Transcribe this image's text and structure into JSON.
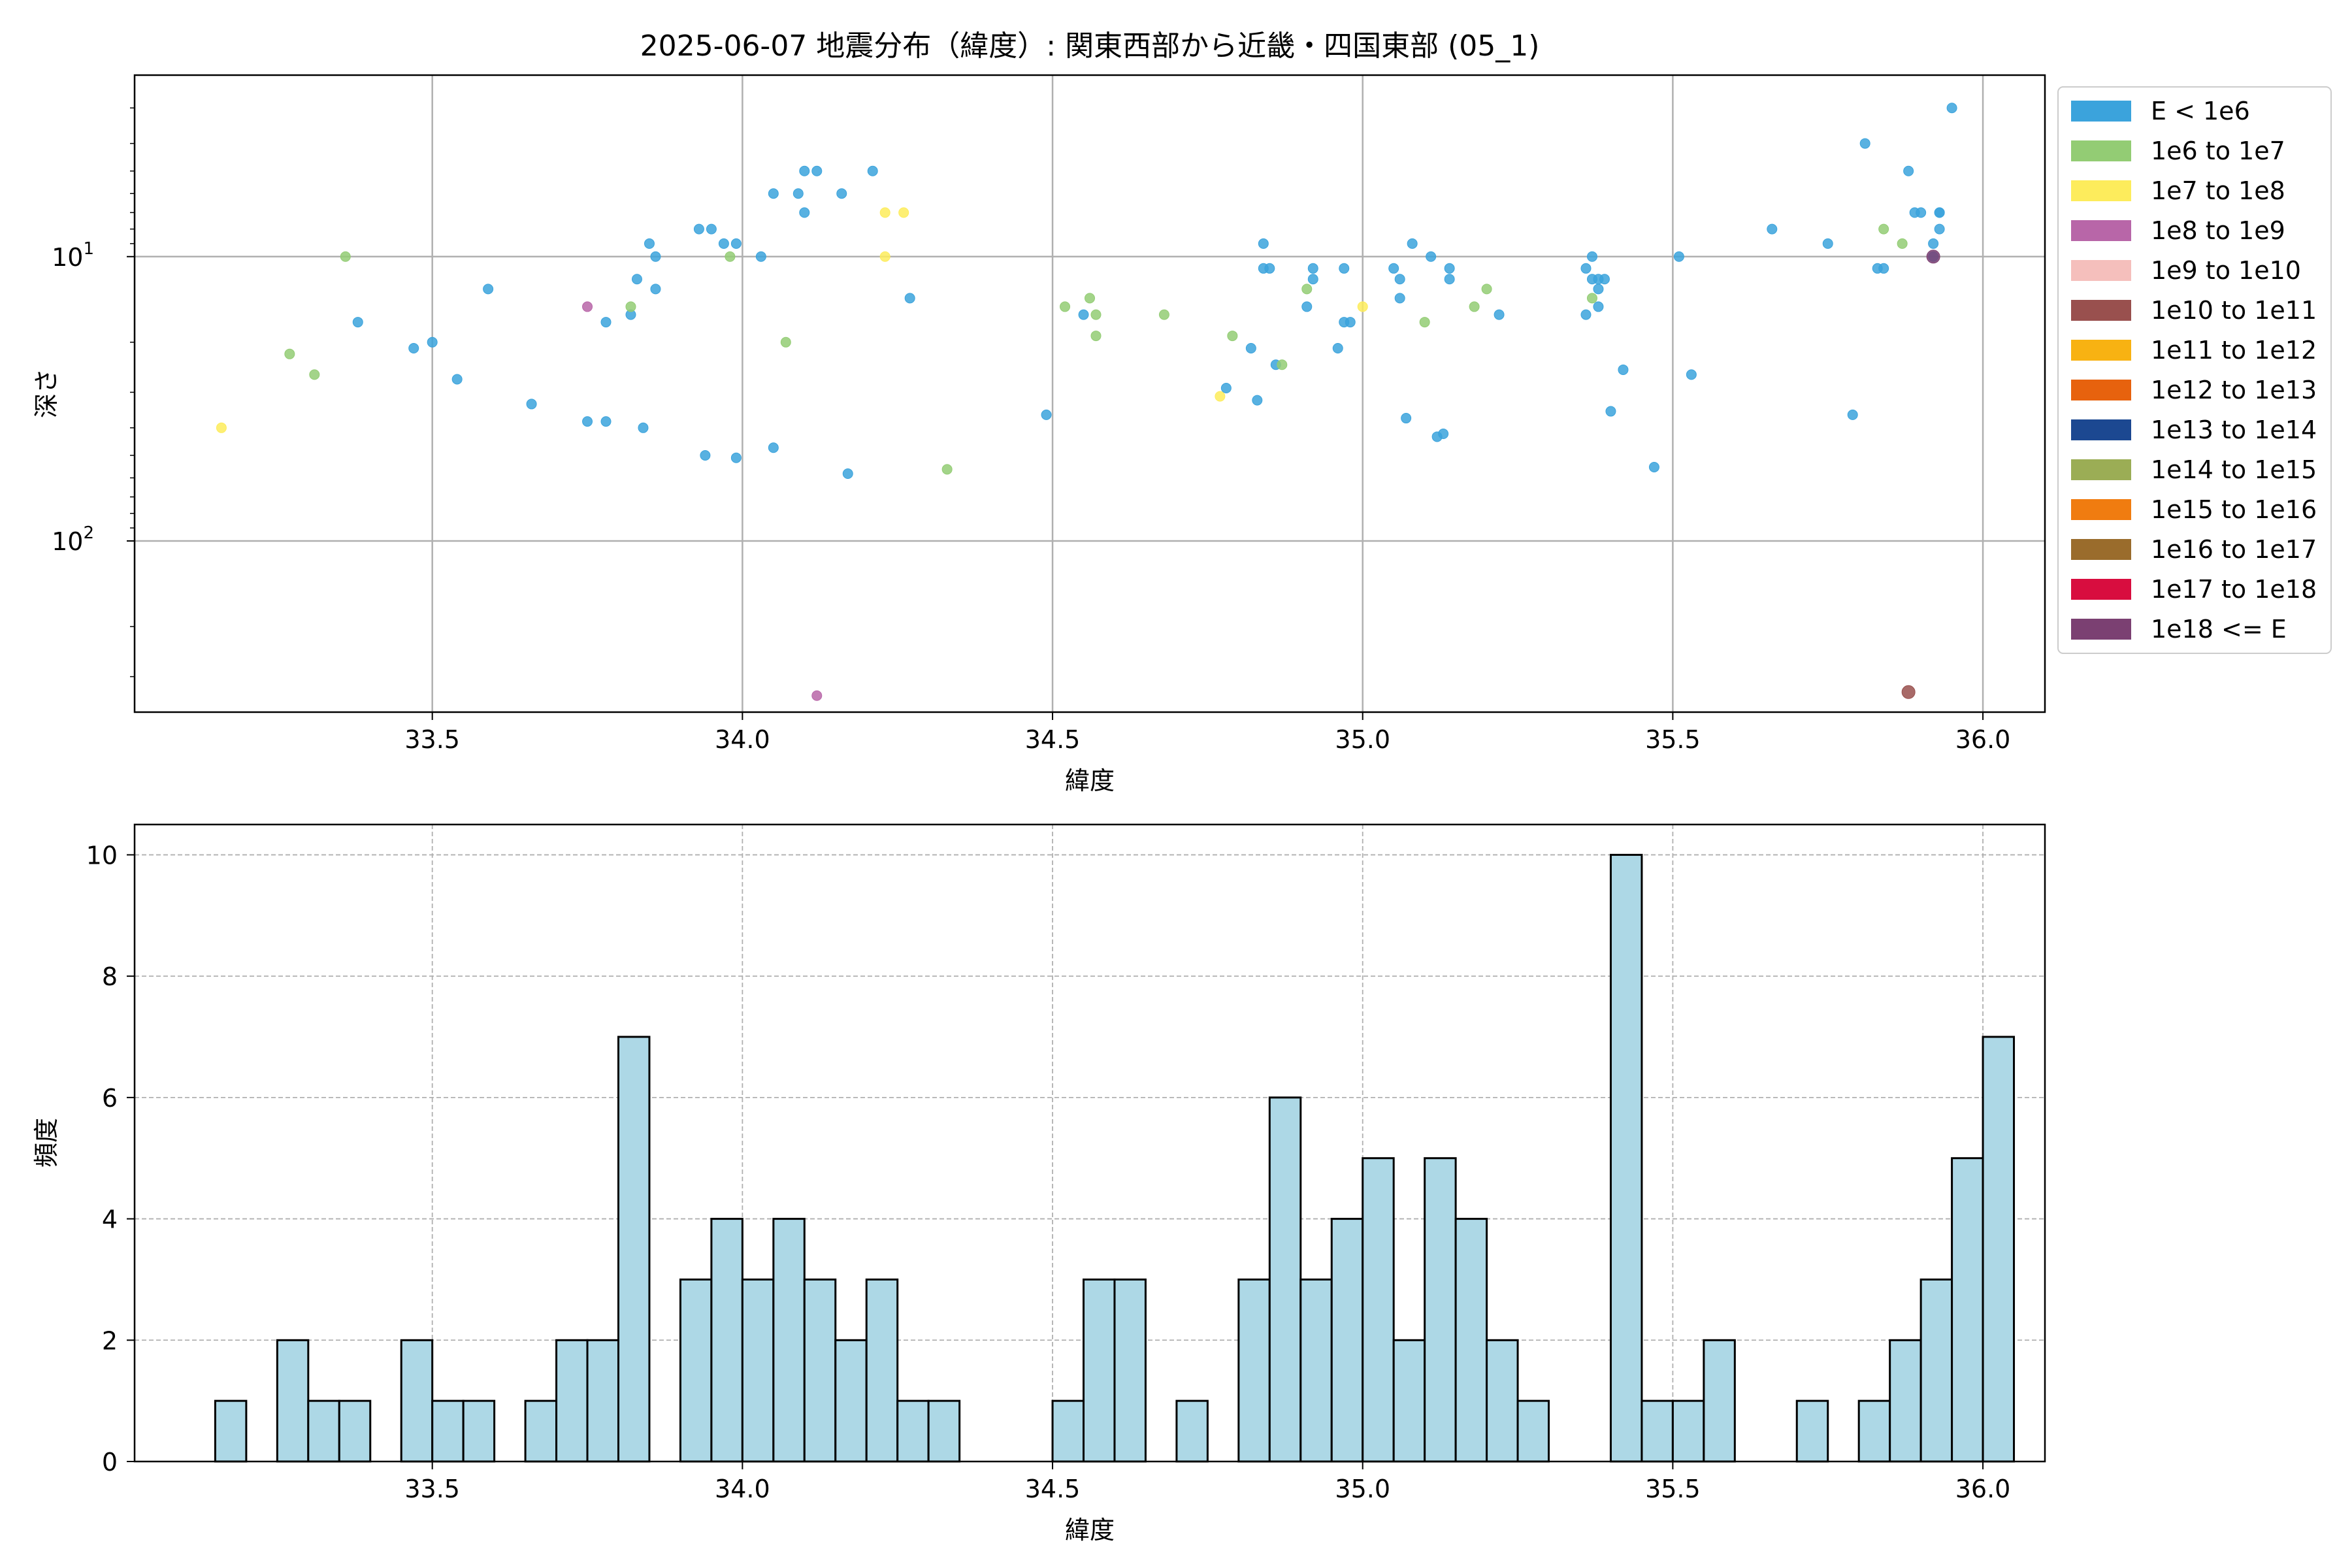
{
  "figure": {
    "top_title": "2025-06-07 地震分布（緯度）: 関東西部から近畿・四国東部 (05_1)"
  },
  "colors": {
    "grid": "#b0b0b0",
    "hist_fill": "#add8e6",
    "hist_edge": "#000000"
  },
  "chart_data": [
    {
      "type": "scatter",
      "title": "2025-06-07 地震分布（緯度）: 関東西部から近畿・四国東部 (05_1)",
      "xlabel": "緯度",
      "ylabel": "深さ",
      "xlim": [
        33.02,
        36.1
      ],
      "ylim": [
        400,
        2.3
      ],
      "y_scale": "log",
      "y_inverted": true,
      "x_ticks": [
        33.5,
        34.0,
        34.5,
        35.0,
        35.5,
        36.0
      ],
      "x_tick_labels": [
        "33.5",
        "34.0",
        "34.5",
        "35.0",
        "35.5",
        "36.0"
      ],
      "y_ticks": [
        10,
        100
      ],
      "y_tick_labels": [
        [
          "10",
          "1"
        ],
        [
          "10",
          "2"
        ]
      ],
      "grid": true,
      "legend_position": "outside-right",
      "legend": [
        {
          "label": "E < 1e6",
          "color": "#3ba3dc"
        },
        {
          "label": "1e6 to 1e7",
          "color": "#93cc74"
        },
        {
          "label": "1e7 to 1e8",
          "color": "#fdec5c"
        },
        {
          "label": "1e8 to 1e9",
          "color": "#b866a8"
        },
        {
          "label": "1e9 to 1e10",
          "color": "#f5bfbc"
        },
        {
          "label": "1e10 to 1e11",
          "color": "#99504e"
        },
        {
          "label": "1e11 to 1e12",
          "color": "#f8b212"
        },
        {
          "label": "1e12 to 1e13",
          "color": "#e7620e"
        },
        {
          "label": "1e13 to 1e14",
          "color": "#1c4891"
        },
        {
          "label": "1e14 to 1e15",
          "color": "#9bad55"
        },
        {
          "label": "1e15 to 1e16",
          "color": "#f07c10"
        },
        {
          "label": "1e16 to 1e17",
          "color": "#9a6c2c"
        },
        {
          "label": "1e17 to 1e18",
          "color": "#d80d3f"
        },
        {
          "label": "1e18 <= E",
          "color": "#7b4072"
        }
      ],
      "points": [
        [
          33.16,
          40,
          2
        ],
        [
          33.27,
          22,
          1
        ],
        [
          33.31,
          26,
          1
        ],
        [
          33.36,
          10,
          1
        ],
        [
          33.38,
          17,
          0
        ],
        [
          33.47,
          21,
          0
        ],
        [
          33.5,
          20,
          0
        ],
        [
          33.54,
          27,
          0
        ],
        [
          33.59,
          13,
          0
        ],
        [
          33.66,
          33,
          0
        ],
        [
          33.75,
          15,
          3
        ],
        [
          33.75,
          38,
          0
        ],
        [
          33.78,
          17,
          0
        ],
        [
          33.78,
          38,
          0
        ],
        [
          33.82,
          16,
          0
        ],
        [
          33.82,
          15,
          1
        ],
        [
          33.83,
          12,
          0
        ],
        [
          33.84,
          40,
          0
        ],
        [
          33.85,
          9,
          0
        ],
        [
          33.86,
          13,
          0
        ],
        [
          33.86,
          10,
          0
        ],
        [
          33.93,
          8,
          0
        ],
        [
          33.95,
          8,
          0
        ],
        [
          33.97,
          9,
          0
        ],
        [
          33.98,
          10,
          1
        ],
        [
          33.99,
          9,
          0
        ],
        [
          33.94,
          50,
          0
        ],
        [
          33.99,
          51,
          0
        ],
        [
          34.03,
          10,
          0
        ],
        [
          34.05,
          6,
          0
        ],
        [
          34.05,
          47,
          0
        ],
        [
          34.07,
          20,
          1
        ],
        [
          34.09,
          6,
          0
        ],
        [
          34.1,
          5,
          0
        ],
        [
          34.12,
          5,
          0
        ],
        [
          34.1,
          7,
          0
        ],
        [
          34.16,
          6,
          0
        ],
        [
          34.12,
          350,
          3
        ],
        [
          34.17,
          58,
          0
        ],
        [
          34.21,
          5,
          0
        ],
        [
          34.23,
          7,
          2
        ],
        [
          34.26,
          7,
          2
        ],
        [
          34.23,
          10,
          2
        ],
        [
          34.27,
          14,
          0
        ],
        [
          34.33,
          56,
          1
        ],
        [
          34.49,
          36,
          0
        ],
        [
          34.52,
          15,
          1
        ],
        [
          34.55,
          16,
          0
        ],
        [
          34.56,
          14,
          1
        ],
        [
          34.57,
          16,
          1
        ],
        [
          34.57,
          19,
          1
        ],
        [
          34.68,
          16,
          1
        ],
        [
          34.77,
          31,
          2
        ],
        [
          34.78,
          29,
          0
        ],
        [
          34.79,
          19,
          1
        ],
        [
          34.82,
          21,
          0
        ],
        [
          34.83,
          32,
          0
        ],
        [
          34.84,
          11,
          0
        ],
        [
          34.84,
          9,
          0
        ],
        [
          34.85,
          11,
          0
        ],
        [
          34.86,
          24,
          0
        ],
        [
          34.87,
          24,
          1
        ],
        [
          34.91,
          13,
          1
        ],
        [
          34.92,
          11,
          0
        ],
        [
          34.92,
          12,
          0
        ],
        [
          34.91,
          15,
          0
        ],
        [
          34.96,
          21,
          0
        ],
        [
          34.97,
          11,
          0
        ],
        [
          34.97,
          17,
          0
        ],
        [
          34.98,
          17,
          0
        ],
        [
          35.0,
          15,
          2
        ],
        [
          35.05,
          11,
          0
        ],
        [
          35.06,
          12,
          0
        ],
        [
          35.06,
          14,
          0
        ],
        [
          35.07,
          37,
          0
        ],
        [
          35.08,
          9,
          0
        ],
        [
          35.1,
          17,
          1
        ],
        [
          35.11,
          10,
          0
        ],
        [
          35.12,
          43,
          0
        ],
        [
          35.13,
          42,
          0
        ],
        [
          35.14,
          11,
          0
        ],
        [
          35.14,
          12,
          0
        ],
        [
          35.18,
          15,
          1
        ],
        [
          35.2,
          13,
          1
        ],
        [
          35.22,
          16,
          0
        ],
        [
          35.36,
          11,
          0
        ],
        [
          35.36,
          16,
          0
        ],
        [
          35.37,
          10,
          0
        ],
        [
          35.37,
          12,
          0
        ],
        [
          35.37,
          14,
          1
        ],
        [
          35.38,
          15,
          0
        ],
        [
          35.38,
          13,
          0
        ],
        [
          35.38,
          12,
          0
        ],
        [
          35.39,
          12,
          0
        ],
        [
          35.4,
          35,
          0
        ],
        [
          35.42,
          25,
          0
        ],
        [
          35.47,
          55,
          0
        ],
        [
          35.51,
          10,
          0
        ],
        [
          35.53,
          26,
          0
        ],
        [
          35.66,
          8,
          0
        ],
        [
          35.75,
          9,
          0
        ],
        [
          35.79,
          36,
          0
        ],
        [
          35.81,
          4,
          0
        ],
        [
          35.83,
          11,
          0
        ],
        [
          35.84,
          11,
          0
        ],
        [
          35.84,
          8,
          1
        ],
        [
          35.87,
          9,
          1
        ],
        [
          35.88,
          5,
          0
        ],
        [
          35.89,
          7,
          0
        ],
        [
          35.9,
          7,
          0
        ],
        [
          35.92,
          9,
          0
        ],
        [
          35.92,
          10,
          0
        ],
        [
          35.92,
          10,
          13
        ],
        [
          35.93,
          8,
          0
        ],
        [
          35.93,
          7,
          0
        ],
        [
          35.93,
          7,
          0
        ],
        [
          35.95,
          3,
          0
        ],
        [
          35.88,
          340,
          5
        ]
      ]
    },
    {
      "type": "bar",
      "title": "",
      "xlabel": "緯度",
      "ylabel": "頻度",
      "xlim": [
        33.02,
        36.1
      ],
      "ylim": [
        0,
        10.5
      ],
      "bin_start": 33.15,
      "bin_width": 0.05,
      "x_ticks": [
        33.5,
        34.0,
        34.5,
        35.0,
        35.5,
        36.0
      ],
      "x_tick_labels": [
        "33.5",
        "34.0",
        "34.5",
        "35.0",
        "35.5",
        "36.0"
      ],
      "y_ticks": [
        0,
        2,
        4,
        6,
        8,
        10
      ],
      "y_tick_labels": [
        "0",
        "2",
        "4",
        "6",
        "8",
        "10"
      ],
      "grid": true,
      "values": [
        1,
        0,
        2,
        1,
        1,
        0,
        2,
        1,
        1,
        0,
        1,
        2,
        2,
        7,
        0,
        3,
        4,
        3,
        4,
        3,
        2,
        3,
        1,
        1,
        0,
        0,
        0,
        1,
        3,
        3,
        0,
        1,
        0,
        3,
        6,
        3,
        4,
        5,
        2,
        5,
        4,
        2,
        1,
        0,
        0,
        10,
        1,
        1,
        2,
        0,
        0,
        1,
        0,
        1,
        2,
        3,
        5,
        7
      ]
    }
  ]
}
